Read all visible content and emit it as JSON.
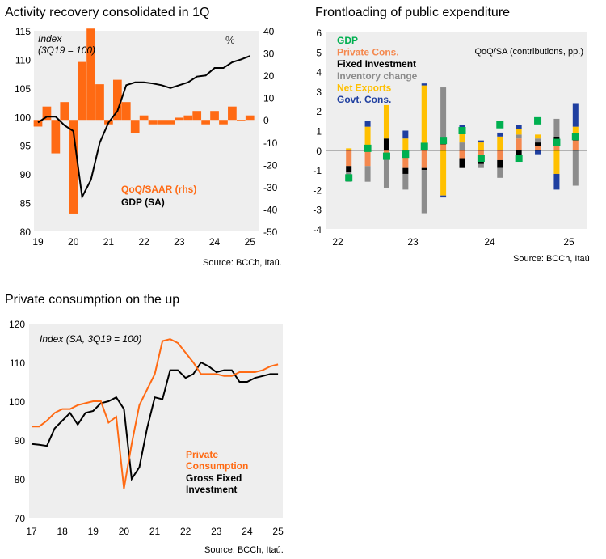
{
  "colors": {
    "orange": "#FF6A13",
    "black": "#000000",
    "green": "#00B050",
    "gray": "#8C8C8C",
    "yellow": "#FFC000",
    "blue": "#1F3FA0",
    "salmon": "#F4884E",
    "panel": "#EEEEEE"
  },
  "chart_data": [
    {
      "id": "activity",
      "type": "bar+line",
      "title": "Activity recovery consolidated in 1Q",
      "source": "Source: BCCh, Itaú.",
      "annotation": "Index\n(3Q19 = 100)",
      "rhs_annotation": "%",
      "x_tick_labels": [
        "19",
        "20",
        "21",
        "22",
        "23",
        "24",
        "25"
      ],
      "x_range": [
        2019,
        2025.2
      ],
      "ylim_left": [
        80,
        115
      ],
      "yticks_left": [
        80,
        85,
        90,
        95,
        100,
        105,
        110,
        115
      ],
      "ylim_right": [
        -50,
        40
      ],
      "yticks_right": [
        -50,
        -40,
        -30,
        -20,
        -10,
        0,
        10,
        20,
        30,
        40
      ],
      "series": [
        {
          "name": "QoQ/SAAR (rhs)",
          "axis": "right",
          "kind": "bar",
          "color": "#FF6A13",
          "x": [
            2019.0,
            2019.25,
            2019.5,
            2019.75,
            2020.0,
            2020.25,
            2020.5,
            2020.75,
            2021.0,
            2021.25,
            2021.5,
            2021.75,
            2022.0,
            2022.25,
            2022.5,
            2022.75,
            2023.0,
            2023.25,
            2023.5,
            2023.75,
            2024.0,
            2024.25,
            2024.5,
            2024.75,
            2025.0
          ],
          "values": [
            -3,
            6,
            -15,
            8,
            -42,
            26,
            41,
            16,
            -2,
            18,
            8,
            -6,
            2,
            -2,
            -2,
            -2,
            1,
            2,
            4,
            -2,
            4,
            -2,
            6,
            -0.5,
            2
          ]
        },
        {
          "name": "GDP (SA)",
          "axis": "left",
          "kind": "line",
          "color": "#000000",
          "x": [
            2019.0,
            2019.25,
            2019.5,
            2019.75,
            2020.0,
            2020.25,
            2020.5,
            2020.75,
            2021.0,
            2021.25,
            2021.5,
            2021.75,
            2022.0,
            2022.25,
            2022.5,
            2022.75,
            2023.0,
            2023.25,
            2023.5,
            2023.75,
            2024.0,
            2024.25,
            2024.5,
            2024.75,
            2025.0
          ],
          "values": [
            99,
            100,
            100,
            98.5,
            97.5,
            86,
            89,
            95.5,
            99,
            101,
            105.5,
            106,
            106,
            105.8,
            105.5,
            105,
            105.5,
            106,
            107,
            107.2,
            108.5,
            108.5,
            109.5,
            110,
            110.6
          ]
        }
      ]
    },
    {
      "id": "frontloading",
      "type": "stacked-bar",
      "title": "Frontloading of public expenditure",
      "source": "Source: BCCh, Itaú",
      "annotation": "QoQ/SA (contributions, pp.)",
      "x_tick_labels": [
        "22",
        "23",
        "24",
        "25"
      ],
      "ylim": [
        -4,
        6
      ],
      "yticks": [
        -4,
        -3,
        -2,
        -1,
        0,
        1,
        2,
        3,
        4,
        5,
        6
      ],
      "categories": [
        "2022Q1",
        "2022Q2",
        "2022Q3",
        "2022Q4",
        "2023Q1",
        "2023Q2",
        "2023Q3",
        "2023Q4",
        "2024Q1",
        "2024Q2",
        "2024Q3",
        "2024Q4",
        "2025Q1"
      ],
      "series": [
        {
          "name": "Private Cons.",
          "color": "#F4884E",
          "values": [
            -0.8,
            -0.8,
            -0.4,
            -0.9,
            -0.9,
            0.3,
            -0.4,
            -0.3,
            -0.5,
            0.6,
            0.2,
            0.4,
            0.5
          ]
        },
        {
          "name": "Fixed Investment",
          "color": "#000000",
          "values": [
            -0.3,
            0.2,
            0.6,
            -0.3,
            -0.1,
            0.1,
            -0.5,
            -0.4,
            -0.4,
            -0.3,
            0.2,
            0.3,
            0.1
          ]
        },
        {
          "name": "Inventory change",
          "color": "#8C8C8C",
          "values": [
            -0.5,
            -0.8,
            -1.5,
            -0.8,
            -2.2,
            2.8,
            0.4,
            -0.2,
            -0.5,
            0.2,
            0.2,
            0.9,
            -1.8
          ]
        },
        {
          "name": "Net Exports",
          "color": "#FFC000",
          "values": [
            0.1,
            1.0,
            1.7,
            0.6,
            3.3,
            -2.3,
            0.7,
            0.4,
            0.7,
            0.3,
            0.2,
            -1.2,
            0.6
          ]
        },
        {
          "name": "Govt. Cons.",
          "color": "#1F3FA0",
          "values": [
            0.0,
            0.3,
            0.0,
            0.4,
            0.1,
            -0.1,
            0.2,
            0.1,
            0.2,
            0.2,
            -0.2,
            -0.8,
            1.2
          ]
        },
        {
          "name": "GDP",
          "color": "#00B050",
          "kind": "marker",
          "values": [
            -1.4,
            0.1,
            -0.3,
            -0.2,
            0.2,
            0.5,
            1.0,
            -0.4,
            1.3,
            -0.4,
            1.5,
            0.4,
            0.7
          ]
        }
      ]
    },
    {
      "id": "consumption",
      "type": "line",
      "title": "Private consumption on the up",
      "source": "Source: BCCh, Itaú.",
      "annotation": "Index (SA, 3Q19 = 100)",
      "x_tick_labels": [
        "17",
        "18",
        "19",
        "20",
        "21",
        "22",
        "23",
        "24",
        "25"
      ],
      "x_range": [
        2017,
        2025.05
      ],
      "ylim": [
        70,
        120
      ],
      "yticks": [
        70,
        80,
        90,
        100,
        110,
        120
      ],
      "series": [
        {
          "name": "Private Consumption",
          "color": "#FF6A13",
          "x": [
            2017.0,
            2017.25,
            2017.5,
            2017.75,
            2018.0,
            2018.25,
            2018.5,
            2018.75,
            2019.0,
            2019.25,
            2019.5,
            2019.75,
            2020.0,
            2020.25,
            2020.5,
            2020.75,
            2021.0,
            2021.25,
            2021.5,
            2021.75,
            2022.0,
            2022.25,
            2022.5,
            2022.75,
            2023.0,
            2023.25,
            2023.5,
            2023.75,
            2024.0,
            2024.25,
            2024.5,
            2024.75,
            2025.0
          ],
          "values": [
            93.5,
            93.5,
            95,
            97,
            98,
            98,
            99,
            99.5,
            100,
            100,
            94.5,
            96,
            77.5,
            89,
            99,
            103,
            107,
            115.5,
            116,
            115,
            112.5,
            110,
            107,
            107,
            107,
            106.5,
            106.5,
            107.5,
            107.5,
            107.5,
            108,
            109,
            109.5
          ]
        },
        {
          "name": "Gross Fixed Investment",
          "color": "#000000",
          "x": [
            2017.0,
            2017.25,
            2017.5,
            2017.75,
            2018.0,
            2018.25,
            2018.5,
            2018.75,
            2019.0,
            2019.25,
            2019.5,
            2019.75,
            2020.0,
            2020.25,
            2020.5,
            2020.75,
            2021.0,
            2021.25,
            2021.5,
            2021.75,
            2022.0,
            2022.25,
            2022.5,
            2022.75,
            2023.0,
            2023.25,
            2023.5,
            2023.75,
            2024.0,
            2024.25,
            2024.5,
            2024.75,
            2025.0
          ],
          "values": [
            89,
            88.8,
            88.5,
            93,
            95,
            97,
            94,
            97,
            97.5,
            99.5,
            100,
            101,
            98,
            80,
            83,
            93,
            101,
            100.5,
            108,
            108,
            106,
            107,
            110,
            109,
            107.5,
            108,
            108,
            105,
            105,
            106,
            106.5,
            107,
            107
          ]
        }
      ]
    }
  ]
}
